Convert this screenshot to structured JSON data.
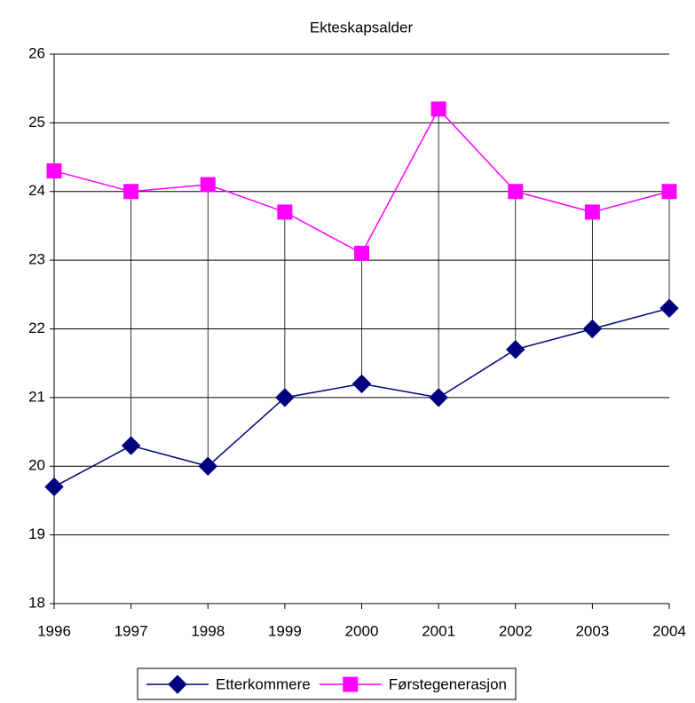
{
  "chart_data": {
    "type": "line",
    "title": "Ekteskapsalder",
    "x": [
      1996,
      1997,
      1998,
      1999,
      2000,
      2001,
      2002,
      2003,
      2004
    ],
    "xlim": [
      1996,
      2004
    ],
    "xticks": [
      1996,
      1997,
      1998,
      1999,
      2000,
      2001,
      2002,
      2003,
      2004
    ],
    "ylim": [
      18,
      26
    ],
    "yticks": [
      18,
      19,
      20,
      21,
      22,
      23,
      24,
      25,
      26
    ],
    "grid": true,
    "high_low_lines": true,
    "legend": "bottom",
    "series": [
      {
        "name": "Etterkommere",
        "color": "#000080",
        "marker": "diamond",
        "values": [
          19.7,
          20.3,
          20.0,
          21.0,
          21.2,
          21.0,
          21.7,
          22.0,
          22.3
        ]
      },
      {
        "name": "Førstegenerasjon",
        "color": "#ff00ff",
        "marker": "square",
        "values": [
          24.3,
          24.0,
          24.1,
          23.7,
          23.1,
          25.2,
          24.0,
          23.7,
          24.0
        ]
      }
    ]
  }
}
